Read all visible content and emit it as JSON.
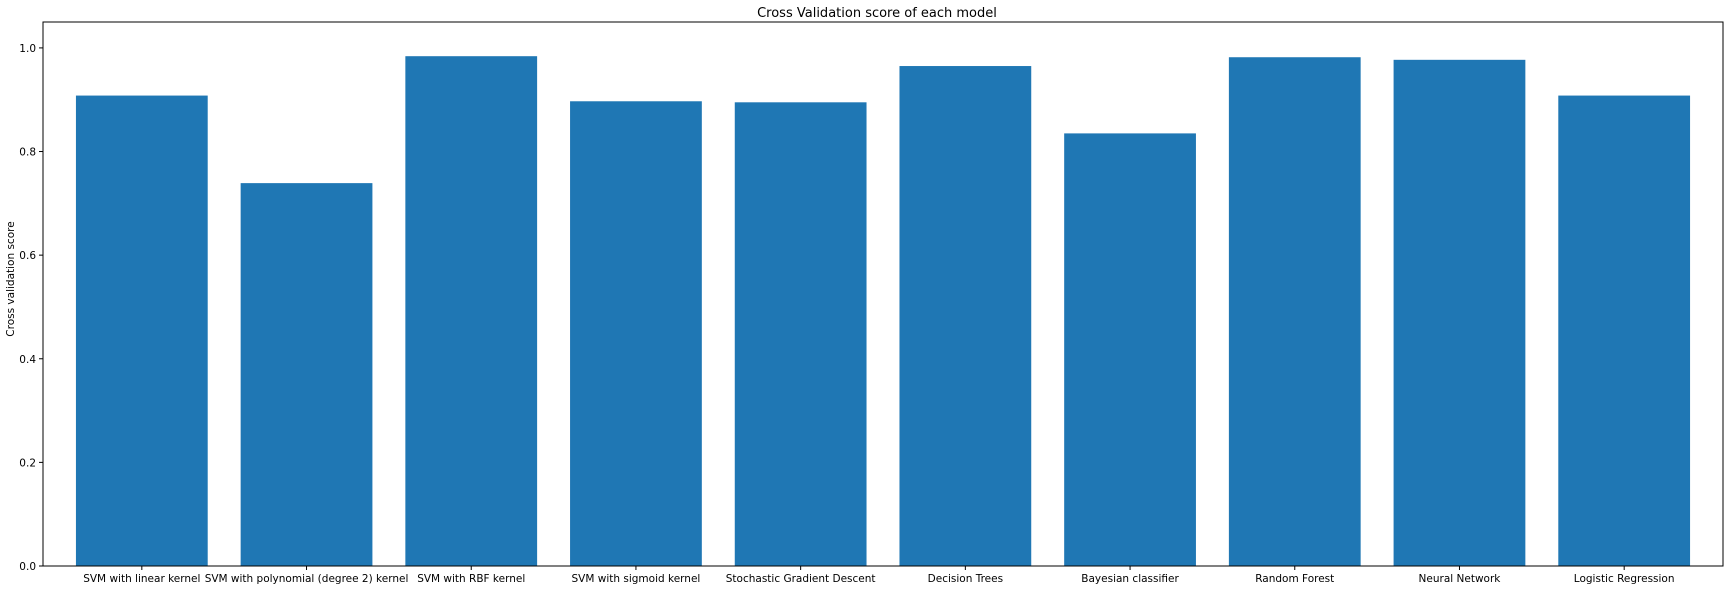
{
  "chart_data": {
    "type": "bar",
    "title": "Cross Validation score of each model",
    "xlabel": "",
    "ylabel": "Cross validation score",
    "categories": [
      "SVM with linear kernel",
      "SVM with polynomial (degree 2) kernel",
      "SVM with RBF kernel",
      "SVM with sigmoid kernel",
      "Stochastic Gradient Descent",
      "Decision Trees",
      "Bayesian classifier",
      "Random Forest",
      "Neural Network",
      "Logistic Regression"
    ],
    "values": [
      0.908,
      0.739,
      0.984,
      0.897,
      0.895,
      0.965,
      0.835,
      0.982,
      0.977,
      0.908
    ],
    "ylim": [
      0,
      1.0
    ],
    "yticks": [
      "0.0",
      "0.2",
      "0.4",
      "0.6",
      "0.8",
      "1.0"
    ],
    "grid": false,
    "colors": {
      "bar": "#1f77b4",
      "axis": "#000000",
      "background": "#ffffff"
    }
  }
}
